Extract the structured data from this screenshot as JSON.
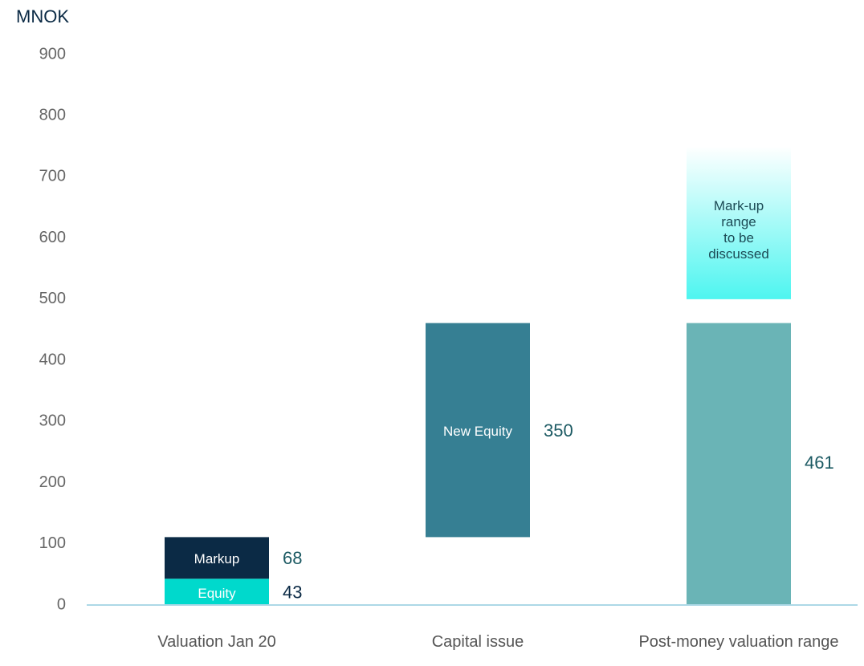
{
  "chart_data": {
    "type": "waterfall",
    "y_label": "MNOK",
    "ylim": [
      0,
      900
    ],
    "yticks": [
      0,
      100,
      200,
      300,
      400,
      500,
      600,
      700,
      800,
      900
    ],
    "categories": [
      "Valuation Jan 20",
      "Capital issue",
      "Post-money valuation range"
    ],
    "series": [
      {
        "name": "Equity",
        "color": "#00d9cc",
        "label_color": "#0b2a45",
        "values": [
          43,
          null,
          null
        ]
      },
      {
        "name": "Markup",
        "color": "#0b2a45",
        "label_color": "#1c5a63",
        "values": [
          68,
          null,
          null
        ]
      },
      {
        "name": "New Equity",
        "color": "#367f93",
        "label_color": "#1c5a63",
        "values": [
          null,
          350,
          null
        ]
      }
    ],
    "totals": [
      null,
      null,
      461
    ],
    "totals_color": "#6ab4b6",
    "totals_label_color": "#1c5a63",
    "range": {
      "category": 2,
      "values": [
        500,
        750
      ],
      "lines": [
        "Mark-up",
        "range",
        "to be",
        "discussed"
      ],
      "color": "#4ef5f0"
    }
  }
}
